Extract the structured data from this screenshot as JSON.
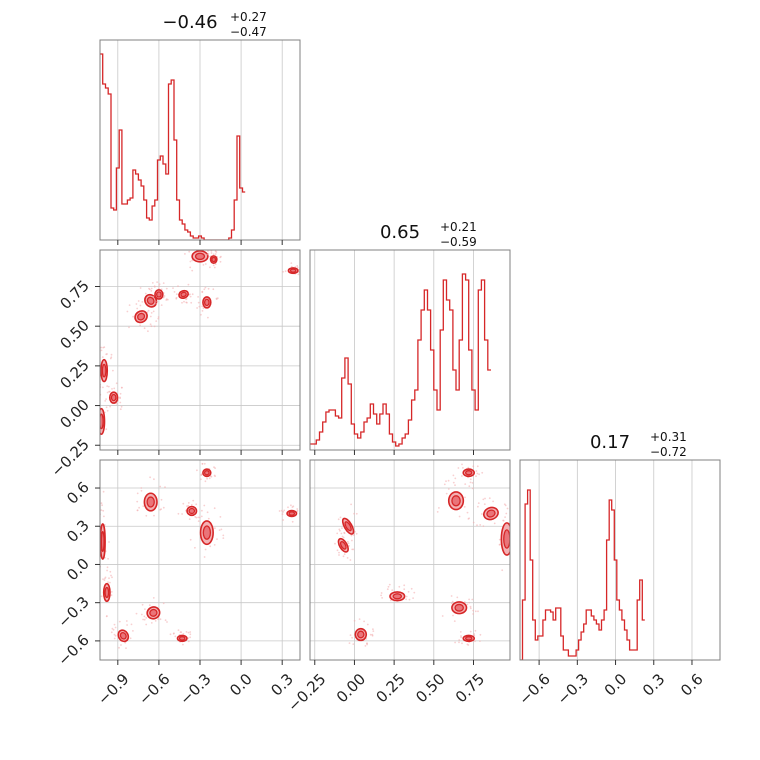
{
  "colors": {
    "accent": "#d62728",
    "fill_light": "#f4b0b3",
    "fill_mid": "#ea7479",
    "grid": "#c8c8c8",
    "frame": "#808080"
  },
  "chart_data": {
    "type": "corner",
    "grid": true,
    "params": [
      {
        "range": [
          -1.03,
          0.43
        ],
        "ticks": [
          -0.9,
          -0.6,
          -0.3,
          0.0,
          0.3
        ],
        "tick_labels": [
          "−0.9",
          "−0.6",
          "−0.3",
          "0.0",
          "0.3"
        ],
        "title": {
          "median": "−0.46",
          "plus": "+0.27",
          "minus": "−0.47"
        },
        "hist": {
          "bins_start": -1.03,
          "bin_width": 0.02,
          "values": [
            0.93,
            0.78,
            0.76,
            0.73,
            0.16,
            0.15,
            0.36,
            0.55,
            0.18,
            0.18,
            0.2,
            0.21,
            0.35,
            0.33,
            0.3,
            0.27,
            0.2,
            0.11,
            0.1,
            0.17,
            0.2,
            0.4,
            0.42,
            0.38,
            0.33,
            0.78,
            0.8,
            0.5,
            0.2,
            0.1,
            0.08,
            0.05,
            0.04,
            0.02,
            0.01,
            0.01,
            0.02,
            0.01,
            0.0,
            0.0,
            0.0,
            0.0,
            0.0,
            0.0,
            0.0,
            0.0,
            0.0,
            0.01,
            0.05,
            0.2,
            0.52,
            0.26,
            0.24
          ]
        }
      },
      {
        "range": [
          -0.28,
          0.98
        ],
        "ticks": [
          -0.25,
          0.0,
          0.25,
          0.5,
          0.75
        ],
        "tick_labels": [
          "−0.25",
          "0.00",
          "0.25",
          "0.50",
          "0.75"
        ],
        "title": {
          "median": "0.65",
          "plus": "+0.21",
          "minus": "−0.59"
        },
        "hist": {
          "bins_start": -0.28,
          "bin_width": 0.02,
          "values": [
            0.03,
            0.03,
            0.05,
            0.09,
            0.14,
            0.19,
            0.2,
            0.2,
            0.17,
            0.16,
            0.36,
            0.46,
            0.33,
            0.13,
            0.08,
            0.06,
            0.09,
            0.14,
            0.16,
            0.23,
            0.18,
            0.13,
            0.18,
            0.23,
            0.18,
            0.08,
            0.04,
            0.02,
            0.03,
            0.06,
            0.08,
            0.15,
            0.25,
            0.3,
            0.55,
            0.7,
            0.8,
            0.7,
            0.5,
            0.3,
            0.2,
            0.6,
            0.85,
            0.75,
            0.7,
            0.4,
            0.3,
            0.55,
            0.88,
            0.85,
            0.5,
            0.3,
            0.2,
            0.8,
            0.85,
            0.55,
            0.4
          ]
        }
      },
      {
        "range": [
          -0.75,
          0.82
        ],
        "ticks": [
          -0.6,
          -0.3,
          0.0,
          0.3,
          0.6
        ],
        "tick_labels": [
          "−0.6",
          "−0.3",
          "0.0",
          "0.3",
          "0.6"
        ],
        "title": {
          "median": "0.17",
          "plus": "+0.31",
          "minus": "−0.72"
        },
        "hist": {
          "bins_start": -0.75,
          "bin_width": 0.02,
          "values": [
            0.0,
            0.3,
            0.78,
            0.85,
            0.5,
            0.2,
            0.1,
            0.12,
            0.12,
            0.2,
            0.25,
            0.25,
            0.24,
            0.2,
            0.26,
            0.26,
            0.12,
            0.05,
            0.05,
            0.02,
            0.02,
            0.02,
            0.05,
            0.1,
            0.14,
            0.18,
            0.25,
            0.25,
            0.22,
            0.2,
            0.18,
            0.15,
            0.2,
            0.25,
            0.6,
            0.8,
            0.75,
            0.5,
            0.3,
            0.25,
            0.2,
            0.15,
            0.1,
            0.05,
            0.05,
            0.05,
            0.3,
            0.4,
            0.2
          ]
        }
      }
    ],
    "blobs": {
      "p2_vs_p1": [
        [
          -1.0,
          0.22,
          0.02,
          0.06,
          0
        ],
        [
          -1.02,
          -0.1,
          0.02,
          0.07,
          0
        ],
        [
          -0.93,
          0.05,
          0.025,
          0.03,
          0
        ],
        [
          -0.73,
          0.56,
          0.04,
          0.03,
          35
        ],
        [
          -0.66,
          0.66,
          0.035,
          0.035,
          35
        ],
        [
          -0.6,
          0.7,
          0.025,
          0.025,
          0
        ],
        [
          -0.42,
          0.7,
          0.03,
          0.02,
          20
        ],
        [
          -0.25,
          0.65,
          0.025,
          0.03,
          0
        ],
        [
          -0.3,
          0.94,
          0.05,
          0.03,
          0
        ],
        [
          -0.2,
          0.92,
          0.02,
          0.02,
          0
        ],
        [
          0.38,
          0.85,
          0.03,
          0.015,
          0
        ]
      ],
      "p3_vs_p1": [
        [
          -1.01,
          0.18,
          0.015,
          0.12,
          0
        ],
        [
          -0.98,
          -0.22,
          0.02,
          0.06,
          0
        ],
        [
          -0.86,
          -0.56,
          0.03,
          0.04,
          30
        ],
        [
          -0.64,
          -0.38,
          0.04,
          0.04,
          20
        ],
        [
          -0.43,
          -0.58,
          0.03,
          0.02,
          0
        ],
        [
          -0.66,
          0.49,
          0.04,
          0.06,
          0
        ],
        [
          -0.25,
          0.25,
          0.04,
          0.08,
          0
        ],
        [
          -0.36,
          0.42,
          0.03,
          0.03,
          0
        ],
        [
          -0.25,
          0.72,
          0.025,
          0.025,
          0
        ],
        [
          0.37,
          0.4,
          0.03,
          0.02,
          0
        ]
      ],
      "p3_vs_p2": [
        [
          -0.04,
          0.3,
          0.02,
          0.06,
          30
        ],
        [
          -0.07,
          0.15,
          0.02,
          0.05,
          30
        ],
        [
          0.04,
          -0.55,
          0.03,
          0.04,
          0
        ],
        [
          0.27,
          -0.25,
          0.04,
          0.03,
          0
        ],
        [
          0.66,
          -0.34,
          0.04,
          0.04,
          0
        ],
        [
          0.72,
          -0.58,
          0.03,
          0.02,
          0
        ],
        [
          0.64,
          0.5,
          0.04,
          0.06,
          0
        ],
        [
          0.72,
          0.72,
          0.03,
          0.025,
          0
        ],
        [
          0.86,
          0.4,
          0.04,
          0.04,
          20
        ],
        [
          0.96,
          0.2,
          0.03,
          0.11,
          0
        ]
      ]
    }
  }
}
